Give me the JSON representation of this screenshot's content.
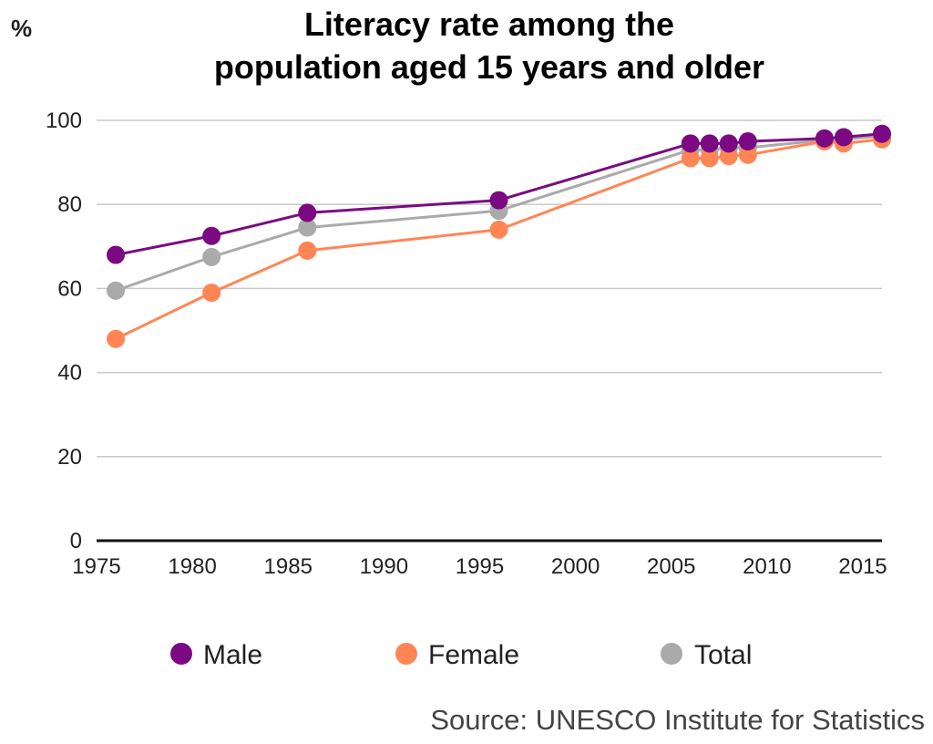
{
  "chart_data": {
    "type": "line",
    "title_lines": [
      "Literacy rate among the",
      "population aged 15 years and older"
    ],
    "y_unit": "%",
    "x": [
      1976,
      1981,
      1986,
      1996,
      2006,
      2007,
      2008,
      2009,
      2013,
      2014,
      2016
    ],
    "series": [
      {
        "name": "Male",
        "color": "#7B0A82",
        "values": [
          68,
          72.5,
          78,
          81,
          94.5,
          94.5,
          94.5,
          95,
          95.7,
          96,
          96.8
        ]
      },
      {
        "name": "Female",
        "color": "#FF8555",
        "values": [
          48,
          59,
          69,
          74,
          91,
          91,
          91.5,
          91.8,
          95,
          94.5,
          95.5
        ]
      },
      {
        "name": "Total",
        "color": "#AAAAAA",
        "values": [
          59.5,
          67.5,
          74.5,
          78.5,
          93,
          93,
          93.5,
          93.5,
          95.3,
          95.5,
          96.3
        ]
      }
    ],
    "xlim": [
      1975,
      2016
    ],
    "ylim": [
      0,
      100
    ],
    "y_ticks": [
      0,
      20,
      40,
      60,
      80,
      100
    ],
    "x_ticks": [
      1975,
      1980,
      1985,
      1990,
      1995,
      2000,
      2005,
      2010,
      2015
    ],
    "grid": "horizontal",
    "legend_position": "bottom",
    "source": "Source: UNESCO Institute for Statistics"
  }
}
